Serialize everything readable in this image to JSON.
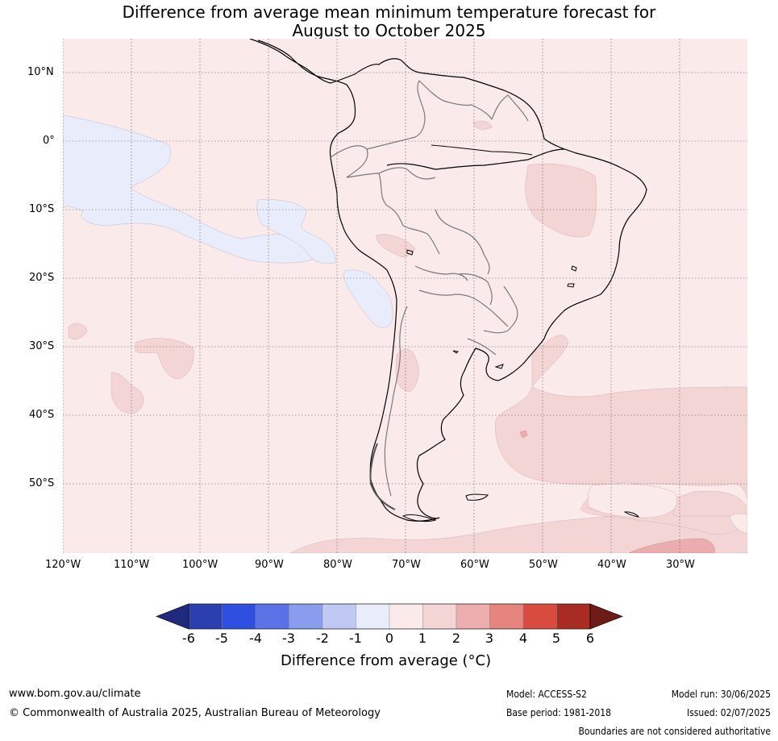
{
  "title_line1": "Difference from average mean minimum temperature forecast for",
  "title_line2": "August to October 2025",
  "lat_labels": [
    "10°N",
    "0°",
    "10°S",
    "20°S",
    "30°S",
    "40°S",
    "50°S"
  ],
  "lon_labels": [
    "120°W",
    "110°W",
    "100°W",
    "90°W",
    "80°W",
    "70°W",
    "60°W",
    "50°W",
    "40°W",
    "30°W"
  ],
  "colorbar": {
    "ticks": [
      "-6",
      "-5",
      "-4",
      "-3",
      "-2",
      "-1",
      "0",
      "1",
      "2",
      "3",
      "4",
      "5",
      "6"
    ],
    "colors": [
      "#1f2a7c",
      "#2b3fb0",
      "#2f4fe0",
      "#5a72e6",
      "#8a9cee",
      "#c0c8f4",
      "#e9ecfb",
      "#fbeaea",
      "#f4d5d5",
      "#ebadad",
      "#e5857d",
      "#d94a3f",
      "#a82c22",
      "#6e1a16"
    ],
    "label": "Difference from average (°C)"
  },
  "footer": {
    "website": "www.bom.gov.au/climate",
    "copyright": "© Commonwealth of Australia 2025, Australian Bureau of Meteorology",
    "model": "Model: ACCESS-S2",
    "base_period": "Base period: 1981-2018",
    "model_run": "Model run: 30/06/2025",
    "issued": "Issued: 02/07/2025",
    "disclaimer": "Boundaries are not considered authoritative"
  },
  "map_colors": {
    "background": "#fbeaea",
    "cool": "#e9ecfb",
    "warm": "#f4d5d5",
    "warmer": "#ebadad",
    "coast": "#000000",
    "border": "#7a7a7a"
  }
}
